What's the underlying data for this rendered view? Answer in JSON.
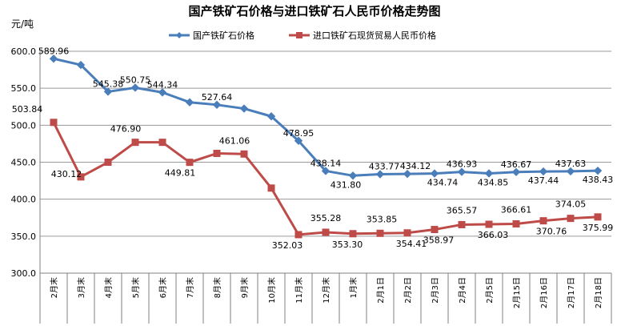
{
  "chart_data": {
    "type": "line",
    "title": "国产铁矿石价格与进口铁矿石人民币价格走势图",
    "ylabel": "元/吨",
    "ylim": [
      300,
      600
    ],
    "yticks": [
      "300.0",
      "350.0",
      "400.0",
      "450.0",
      "500.0",
      "550.0",
      "600.0"
    ],
    "grid": true,
    "legend_position": "top",
    "categories": [
      "2月末",
      "3月末",
      "4月末",
      "5月末",
      "6月末",
      "7月末",
      "8月末",
      "9月末",
      "10月末",
      "11月末",
      "12月末",
      "1月末",
      "2月1日",
      "2月2日",
      "2月3日",
      "2月4日",
      "2月5日",
      "2月15日",
      "2月16日",
      "2月17日",
      "2月18日"
    ],
    "series": [
      {
        "name": "国产铁矿石价格",
        "color": "#4A7EBB",
        "marker": "diamond",
        "values": [
          589.96,
          581.5,
          545.38,
          550.75,
          544.34,
          531.0,
          527.64,
          522.5,
          512.0,
          478.95,
          438.14,
          431.8,
          433.77,
          434.12,
          434.74,
          436.93,
          434.85,
          436.67,
          437.44,
          437.63,
          438.43
        ],
        "labels": [
          "589.96",
          "",
          "545.38",
          "550.75",
          "544.34",
          "",
          "527.64",
          "",
          "",
          "478.95",
          "438.14",
          "431.80",
          "433.77",
          "434.12",
          "434.74",
          "436.93",
          "434.85",
          "436.67",
          "437.44",
          "437.63",
          "438.43"
        ]
      },
      {
        "name": "进口铁矿石现货贸易人民币价格",
        "color": "#BE4B48",
        "marker": "square",
        "values": [
          503.84,
          430.12,
          450.0,
          476.9,
          476.9,
          449.81,
          461.9,
          461.06,
          415.0,
          352.03,
          355.28,
          353.3,
          353.85,
          354.41,
          358.97,
          365.57,
          366.03,
          366.61,
          370.76,
          374.05,
          375.99
        ],
        "labels": [
          "503.84",
          "430.12",
          "",
          "476.90",
          "",
          "449.81",
          "",
          "461.06",
          "",
          "352.03",
          "355.28",
          "353.30",
          "353.85",
          "354.41",
          "358.97",
          "365.57",
          "366.03",
          "366.61",
          "370.76",
          "374.05",
          "375.99"
        ]
      }
    ]
  }
}
